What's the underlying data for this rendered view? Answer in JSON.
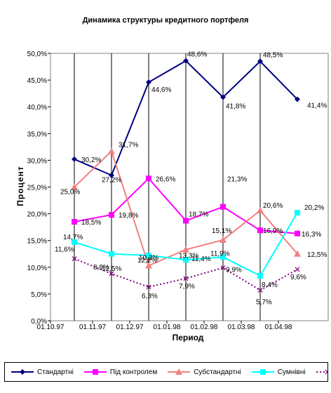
{
  "chart_data": {
    "type": "line",
    "title": "Динамика структуры кредитного портфеля",
    "xlabel": "Период",
    "ylabel": "Процент",
    "ylim": [
      0,
      50
    ],
    "y_ticks": [
      "0,0%",
      "5,0%",
      "10,0%",
      "15,0%",
      "20,0%",
      "25,0%",
      "30,0%",
      "35,0%",
      "40,0%",
      "45,0%",
      "50,0%"
    ],
    "x_ticks": [
      "01.10.97",
      "01.11.97",
      "01.12.97",
      "01.01.98",
      "01.02.98",
      "01.03.98",
      "01.04.98"
    ],
    "categories": [
      "10.97",
      "11.97",
      "12.97",
      "01.98",
      "02.98",
      "03.98",
      "04.98"
    ],
    "grid": "vertical",
    "legend_position": "bottom",
    "series": [
      {
        "name": "Стандартні",
        "color": "#000080",
        "marker": "diamond",
        "dash": "solid",
        "values": [
          30.2,
          27.2,
          44.6,
          48.6,
          41.8,
          48.5,
          41.4
        ],
        "labels": [
          "30,2%",
          "27,2%",
          "44,6%",
          "48,6%",
          "41,8%",
          "48,5%",
          "41,4%"
        ]
      },
      {
        "name": "Під контролем",
        "color": "#ff00ff",
        "marker": "square",
        "dash": "solid",
        "values": [
          18.5,
          19.8,
          26.6,
          18.7,
          21.3,
          16.9,
          16.3
        ],
        "labels": [
          "18,5%",
          "19,8%",
          "26,6%",
          "18,7%",
          "21,3%",
          "16,9%",
          "16,3%"
        ]
      },
      {
        "name": "Субстандартні",
        "color": "#f08080",
        "marker": "triangle",
        "dash": "solid",
        "values": [
          25.0,
          31.7,
          10.3,
          13.3,
          15.1,
          20.6,
          12.5
        ],
        "labels": [
          "25,0%",
          "31,7%",
          "10,3%",
          "13,3%",
          "15,1%",
          "20,6%",
          "12,5%"
        ]
      },
      {
        "name": "Сумнівні",
        "color": "#00ffff",
        "marker": "square",
        "dash": "solid",
        "values": [
          14.7,
          12.5,
          12.2,
          11.4,
          11.9,
          8.4,
          20.2
        ],
        "labels": [
          "14,7%",
          "12,5%",
          "12,2%",
          "11,4%",
          "11,9%",
          "8,4%",
          "20,2%"
        ]
      },
      {
        "name": "",
        "color": "#800080",
        "marker": "x",
        "dash": "dotted",
        "values": [
          11.6,
          8.8,
          6.3,
          7.9,
          9.9,
          5.7,
          9.6
        ],
        "labels": [
          "11,6%",
          "8,8%",
          "6,3%",
          "7,9%",
          "9,9%",
          "5,7%",
          "9,6%"
        ]
      }
    ]
  }
}
